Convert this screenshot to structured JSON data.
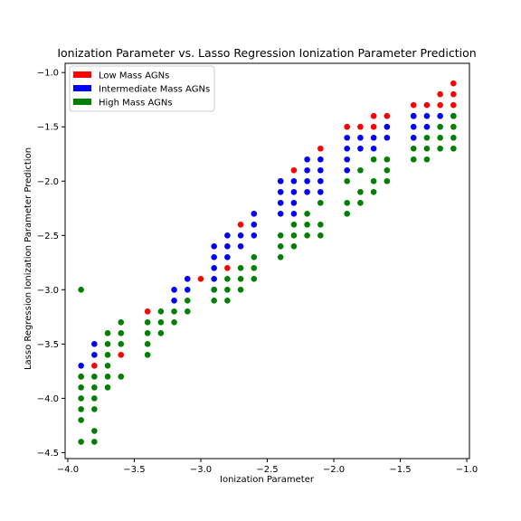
{
  "chart_data": {
    "type": "scatter",
    "title": "Ionization Parameter vs. Lasso Regression Ionization Parameter Prediction",
    "xlabel": "Ionization Parameter",
    "ylabel": "Lasso Regression Ionization Parameter Prediction",
    "xlim": [
      -4.0,
      -1.0
    ],
    "ylim": [
      -4.5,
      -1.0
    ],
    "xticks": [
      "−4.0",
      "−3.5",
      "−3.0",
      "−2.5",
      "−2.0",
      "−1.5",
      "−1.0"
    ],
    "yticks": [
      "−4.5",
      "−4.0",
      "−3.5",
      "−3.0",
      "−2.5",
      "−2.0",
      "−1.5",
      "−1.0"
    ],
    "grid": false,
    "legend_position": "top-left",
    "series": [
      {
        "name": "Low Mass AGNs",
        "color": "#ff0000",
        "points": [
          [
            -3.9,
            -3.8
          ],
          [
            -3.8,
            -3.7
          ],
          [
            -3.6,
            -3.6
          ],
          [
            -3.4,
            -3.2
          ],
          [
            -3.1,
            -2.9
          ],
          [
            -3.0,
            -2.9
          ],
          [
            -2.8,
            -2.8
          ],
          [
            -2.7,
            -2.4
          ],
          [
            -2.6,
            -2.3
          ],
          [
            -2.4,
            -2.0
          ],
          [
            -2.3,
            -1.9
          ],
          [
            -2.1,
            -1.7
          ],
          [
            -1.9,
            -1.5
          ],
          [
            -1.8,
            -1.5
          ],
          [
            -1.7,
            -1.4
          ],
          [
            -1.7,
            -1.5
          ],
          [
            -1.6,
            -1.4
          ],
          [
            -1.4,
            -1.3
          ],
          [
            -1.4,
            -1.4
          ],
          [
            -1.3,
            -1.3
          ],
          [
            -1.2,
            -1.2
          ],
          [
            -1.2,
            -1.3
          ],
          [
            -1.1,
            -1.1
          ],
          [
            -1.1,
            -1.2
          ],
          [
            -1.1,
            -1.3
          ]
        ]
      },
      {
        "name": "Intermediate Mass AGNs",
        "color": "#0000ff",
        "points": [
          [
            -3.9,
            -3.7
          ],
          [
            -3.8,
            -3.5
          ],
          [
            -3.8,
            -3.6
          ],
          [
            -3.2,
            -3.0
          ],
          [
            -3.2,
            -3.1
          ],
          [
            -3.1,
            -2.9
          ],
          [
            -3.1,
            -3.0
          ],
          [
            -2.9,
            -2.6
          ],
          [
            -2.9,
            -2.7
          ],
          [
            -2.9,
            -2.8
          ],
          [
            -2.9,
            -2.9
          ],
          [
            -2.9,
            -3.0
          ],
          [
            -2.8,
            -2.5
          ],
          [
            -2.8,
            -2.6
          ],
          [
            -2.8,
            -2.7
          ],
          [
            -2.7,
            -2.5
          ],
          [
            -2.7,
            -2.6
          ],
          [
            -2.6,
            -2.3
          ],
          [
            -2.6,
            -2.4
          ],
          [
            -2.6,
            -2.5
          ],
          [
            -2.4,
            -2.0
          ],
          [
            -2.4,
            -2.1
          ],
          [
            -2.4,
            -2.2
          ],
          [
            -2.4,
            -2.3
          ],
          [
            -2.3,
            -2.0
          ],
          [
            -2.3,
            -2.1
          ],
          [
            -2.3,
            -2.2
          ],
          [
            -2.3,
            -2.3
          ],
          [
            -2.2,
            -1.8
          ],
          [
            -2.2,
            -1.9
          ],
          [
            -2.2,
            -2.0
          ],
          [
            -2.2,
            -2.1
          ],
          [
            -2.1,
            -1.8
          ],
          [
            -2.1,
            -1.9
          ],
          [
            -2.1,
            -2.0
          ],
          [
            -2.1,
            -2.1
          ],
          [
            -1.9,
            -1.6
          ],
          [
            -1.9,
            -1.7
          ],
          [
            -1.9,
            -1.8
          ],
          [
            -1.9,
            -1.9
          ],
          [
            -1.8,
            -1.6
          ],
          [
            -1.8,
            -1.7
          ],
          [
            -1.7,
            -1.6
          ],
          [
            -1.7,
            -1.7
          ],
          [
            -1.6,
            -1.5
          ],
          [
            -1.6,
            -1.6
          ],
          [
            -1.4,
            -1.4
          ],
          [
            -1.4,
            -1.5
          ],
          [
            -1.4,
            -1.6
          ],
          [
            -1.3,
            -1.4
          ],
          [
            -1.3,
            -1.5
          ],
          [
            -1.2,
            -1.4
          ],
          [
            -1.1,
            -1.4
          ]
        ]
      },
      {
        "name": "High Mass AGNs",
        "color": "#008000",
        "points": [
          [
            -3.9,
            -3.0
          ],
          [
            -3.9,
            -3.8
          ],
          [
            -3.9,
            -3.9
          ],
          [
            -3.9,
            -4.0
          ],
          [
            -3.9,
            -4.1
          ],
          [
            -3.9,
            -4.2
          ],
          [
            -3.9,
            -4.4
          ],
          [
            -3.8,
            -3.8
          ],
          [
            -3.8,
            -3.9
          ],
          [
            -3.8,
            -4.0
          ],
          [
            -3.8,
            -4.1
          ],
          [
            -3.8,
            -4.3
          ],
          [
            -3.8,
            -4.4
          ],
          [
            -3.7,
            -3.4
          ],
          [
            -3.7,
            -3.5
          ],
          [
            -3.7,
            -3.6
          ],
          [
            -3.7,
            -3.7
          ],
          [
            -3.7,
            -3.8
          ],
          [
            -3.7,
            -3.9
          ],
          [
            -3.6,
            -3.3
          ],
          [
            -3.6,
            -3.4
          ],
          [
            -3.6,
            -3.5
          ],
          [
            -3.6,
            -3.8
          ],
          [
            -3.4,
            -3.3
          ],
          [
            -3.4,
            -3.4
          ],
          [
            -3.4,
            -3.5
          ],
          [
            -3.4,
            -3.6
          ],
          [
            -3.3,
            -3.2
          ],
          [
            -3.3,
            -3.3
          ],
          [
            -3.3,
            -3.4
          ],
          [
            -3.2,
            -3.2
          ],
          [
            -3.2,
            -3.3
          ],
          [
            -3.1,
            -3.1
          ],
          [
            -3.1,
            -3.2
          ],
          [
            -2.9,
            -3.0
          ],
          [
            -2.9,
            -3.1
          ],
          [
            -2.8,
            -2.9
          ],
          [
            -2.8,
            -3.0
          ],
          [
            -2.8,
            -3.1
          ],
          [
            -2.7,
            -2.8
          ],
          [
            -2.7,
            -2.9
          ],
          [
            -2.7,
            -3.0
          ],
          [
            -2.6,
            -2.7
          ],
          [
            -2.6,
            -2.8
          ],
          [
            -2.6,
            -2.9
          ],
          [
            -2.4,
            -2.5
          ],
          [
            -2.4,
            -2.6
          ],
          [
            -2.4,
            -2.7
          ],
          [
            -2.3,
            -2.4
          ],
          [
            -2.3,
            -2.5
          ],
          [
            -2.3,
            -2.6
          ],
          [
            -2.2,
            -2.3
          ],
          [
            -2.2,
            -2.4
          ],
          [
            -2.2,
            -2.5
          ],
          [
            -2.1,
            -2.2
          ],
          [
            -2.1,
            -2.4
          ],
          [
            -2.1,
            -2.5
          ],
          [
            -1.9,
            -2.0
          ],
          [
            -1.9,
            -2.2
          ],
          [
            -1.9,
            -2.3
          ],
          [
            -1.8,
            -1.9
          ],
          [
            -1.8,
            -2.1
          ],
          [
            -1.8,
            -2.2
          ],
          [
            -1.7,
            -1.8
          ],
          [
            -1.7,
            -2.0
          ],
          [
            -1.7,
            -2.1
          ],
          [
            -1.6,
            -1.8
          ],
          [
            -1.6,
            -1.9
          ],
          [
            -1.6,
            -2.0
          ],
          [
            -1.4,
            -1.7
          ],
          [
            -1.4,
            -1.8
          ],
          [
            -1.3,
            -1.6
          ],
          [
            -1.3,
            -1.7
          ],
          [
            -1.3,
            -1.8
          ],
          [
            -1.2,
            -1.5
          ],
          [
            -1.2,
            -1.6
          ],
          [
            -1.2,
            -1.7
          ],
          [
            -1.1,
            -1.4
          ],
          [
            -1.1,
            -1.5
          ],
          [
            -1.1,
            -1.6
          ],
          [
            -1.1,
            -1.7
          ]
        ]
      }
    ]
  }
}
